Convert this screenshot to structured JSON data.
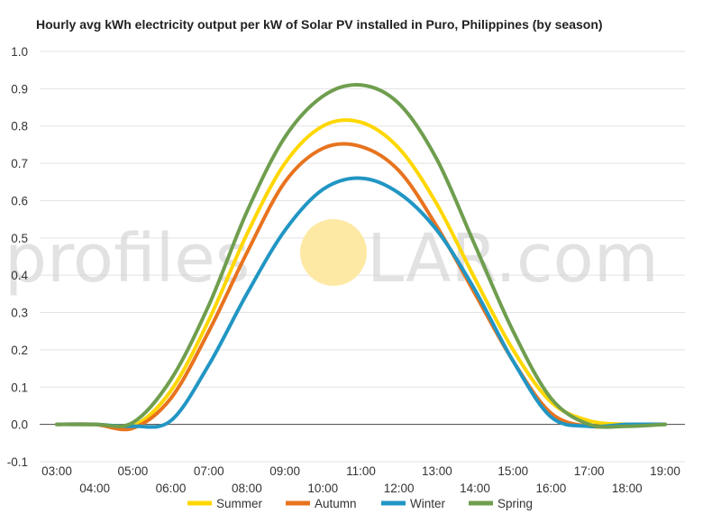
{
  "chart_data": {
    "type": "line",
    "title": "Hourly avg kWh electricity output per kW of Solar PV installed in Puro, Philippines (by season)",
    "xlabel": "",
    "ylabel": "",
    "x": [
      "03:00",
      "04:00",
      "05:00",
      "06:00",
      "07:00",
      "08:00",
      "09:00",
      "10:00",
      "11:00",
      "12:00",
      "13:00",
      "14:00",
      "15:00",
      "16:00",
      "17:00",
      "18:00",
      "19:00"
    ],
    "ylim": [
      -0.1,
      1.0
    ],
    "yticks": [
      "-0.1",
      "0.0",
      "0.1",
      "0.2",
      "0.3",
      "0.4",
      "0.5",
      "0.6",
      "0.7",
      "0.8",
      "0.9",
      "1.0"
    ],
    "grid": true,
    "legend": "bottom",
    "series": [
      {
        "name": "Summer",
        "color": "#ffd700",
        "values": [
          0,
          0,
          -0.005,
          0.09,
          0.28,
          0.51,
          0.7,
          0.8,
          0.81,
          0.74,
          0.59,
          0.39,
          0.2,
          0.06,
          0.01,
          0.0,
          0.0
        ]
      },
      {
        "name": "Autumn",
        "color": "#e8731e",
        "values": [
          0,
          0,
          -0.01,
          0.07,
          0.25,
          0.46,
          0.65,
          0.74,
          0.745,
          0.68,
          0.53,
          0.35,
          0.17,
          0.03,
          -0.005,
          0.0,
          0.0
        ]
      },
      {
        "name": "Winter",
        "color": "#2196c4",
        "values": [
          0,
          0,
          -0.005,
          0.01,
          0.16,
          0.35,
          0.52,
          0.63,
          0.66,
          0.62,
          0.52,
          0.36,
          0.17,
          0.02,
          -0.005,
          0.0,
          0.0
        ]
      },
      {
        "name": "Spring",
        "color": "#6f9e4e",
        "values": [
          0,
          0,
          0.005,
          0.12,
          0.32,
          0.57,
          0.77,
          0.88,
          0.91,
          0.86,
          0.71,
          0.48,
          0.25,
          0.07,
          0.0,
          -0.005,
          0.0
        ]
      }
    ]
  },
  "watermark": {
    "text_before": "profiles",
    "text_after": "LAR.com",
    "sun_color": "#fde9a4"
  }
}
